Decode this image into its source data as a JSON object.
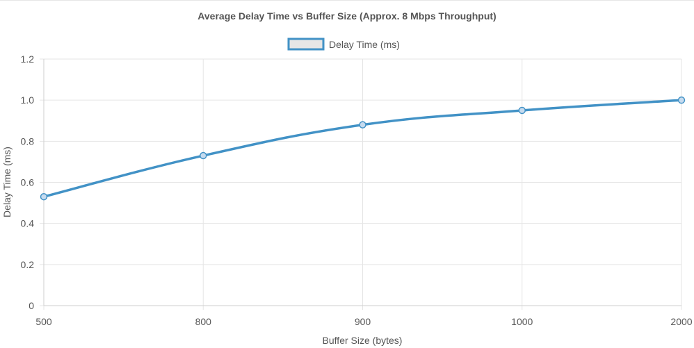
{
  "chart_data": {
    "type": "line",
    "title": "Average Delay Time vs Buffer Size (Approx. 8 Mbps Throughput)",
    "xlabel": "Buffer Size (bytes)",
    "ylabel": "Delay Time (ms)",
    "categories": [
      "500",
      "800",
      "900",
      "1000",
      "2000"
    ],
    "series": [
      {
        "name": "Delay Time (ms)",
        "values": [
          0.53,
          0.73,
          0.88,
          0.95,
          1.0
        ]
      }
    ],
    "ylim": [
      0,
      1.2
    ],
    "y_ticks": [
      "0",
      "0.2",
      "0.4",
      "0.6",
      "0.8",
      "1.0",
      "1.2"
    ],
    "grid": true,
    "legend_position": "top-center",
    "colors": {
      "line": "#4292c6",
      "legend_fill": "#e6e6e6",
      "marker_fill": "#c6dbef"
    }
  }
}
